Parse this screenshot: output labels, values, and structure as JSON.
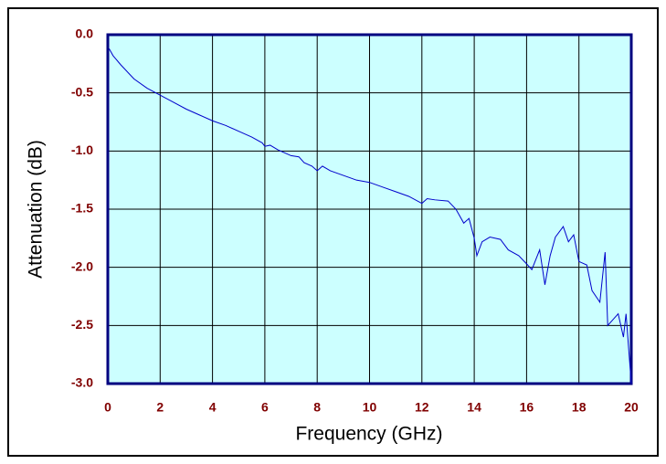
{
  "chart_data": {
    "type": "line",
    "xlabel": "Frequency (GHz)",
    "ylabel": "Attenuation (dB)",
    "x": [
      0.05,
      0.2,
      0.5,
      1,
      1.5,
      2,
      2.5,
      3,
      3.5,
      4,
      4.5,
      5,
      5.5,
      5.9,
      6,
      6.2,
      6.5,
      7,
      7.3,
      7.5,
      7.8,
      8,
      8.2,
      8.5,
      9,
      9.5,
      10,
      10.5,
      11,
      11.5,
      12,
      12.2,
      12.5,
      13,
      13.3,
      13.6,
      13.8,
      14,
      14.1,
      14.3,
      14.6,
      15,
      15.3,
      15.7,
      16,
      16.2,
      16.5,
      16.7,
      16.9,
      17.1,
      17.4,
      17.6,
      17.8,
      18,
      18.3,
      18.5,
      18.8,
      19,
      19.1,
      19.3,
      19.5,
      19.7,
      19.8,
      20
    ],
    "series": [
      {
        "name": "Attenuation",
        "color": "#0000cc",
        "values": [
          -0.12,
          -0.18,
          -0.26,
          -0.38,
          -0.46,
          -0.52,
          -0.58,
          -0.64,
          -0.69,
          -0.74,
          -0.78,
          -0.83,
          -0.88,
          -0.93,
          -0.96,
          -0.95,
          -0.99,
          -1.04,
          -1.05,
          -1.1,
          -1.13,
          -1.17,
          -1.13,
          -1.17,
          -1.21,
          -1.25,
          -1.27,
          -1.31,
          -1.35,
          -1.39,
          -1.45,
          -1.41,
          -1.42,
          -1.43,
          -1.5,
          -1.62,
          -1.58,
          -1.75,
          -1.9,
          -1.78,
          -1.74,
          -1.76,
          -1.85,
          -1.9,
          -1.97,
          -2.02,
          -1.85,
          -2.15,
          -1.9,
          -1.74,
          -1.65,
          -1.78,
          -1.72,
          -1.95,
          -1.98,
          -2.2,
          -2.3,
          -1.87,
          -2.5,
          -2.45,
          -2.4,
          -2.6,
          -2.4,
          -3.0
        ]
      }
    ],
    "xlim": [
      0,
      20
    ],
    "xticks": [
      0,
      2,
      4,
      6,
      8,
      10,
      12,
      14,
      16,
      18,
      20
    ],
    "ylim": [
      -3,
      0
    ],
    "yticks": [
      {
        "value": 0,
        "label": "0.0"
      },
      -0.5,
      {
        "value": -1,
        "label": "-1.0"
      },
      -1.5,
      {
        "value": -2,
        "label": "-2.0"
      },
      -2.5,
      {
        "value": -3,
        "label": "-3.0"
      }
    ],
    "grid": true,
    "plot_background": "#ccffff",
    "frame_color": "#000080"
  }
}
